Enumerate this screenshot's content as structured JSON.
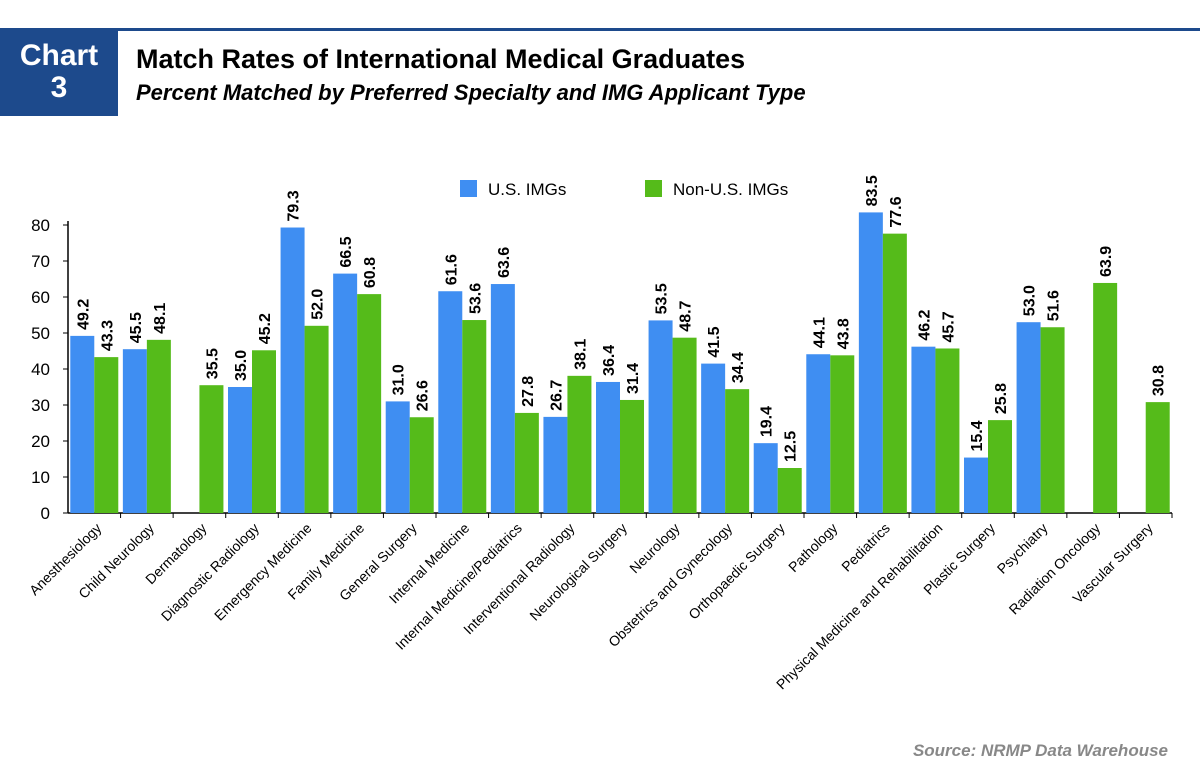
{
  "header": {
    "badge_line1": "Chart",
    "badge_line2": "3",
    "title": "Match Rates of International Medical Graduates",
    "subtitle": "Percent Matched by Preferred Specialty and IMG Applicant Type",
    "source": "Source: NRMP Data Warehouse"
  },
  "colors": {
    "us": "#3f8ef2",
    "non_us": "#55bb1a",
    "brand": "#1d4a8c"
  },
  "chart_data": {
    "type": "bar",
    "title": "Match Rates of International Medical Graduates",
    "subtitle": "Percent Matched by Preferred Specialty and IMG Applicant Type",
    "xlabel": "",
    "ylabel": "",
    "ylim": [
      0,
      80
    ],
    "yticks": [
      0,
      10,
      20,
      30,
      40,
      50,
      60,
      70,
      80
    ],
    "legend_position": "top-center",
    "categories": [
      "Anesthesiology",
      "Child Neurology",
      "Dermatology",
      "Diagnostic Radiology",
      "Emergency Medicine",
      "Family Medicine",
      "General Surgery",
      "Internal Medicine",
      "Internal Medicine/Pediatrics",
      "Interventional Radiology",
      "Neurological Surgery",
      "Neurology",
      "Obstetrics and Gynecology",
      "Orthopaedic Surgery",
      "Pathology",
      "Pediatrics",
      "Physical Medicine and Rehabilitation",
      "Plastic Surgery",
      "Psychiatry",
      "Radiation Oncology",
      "Vascular Surgery"
    ],
    "series": [
      {
        "name": "U.S. IMGs",
        "values": [
          49.2,
          45.5,
          null,
          35.0,
          79.3,
          66.5,
          31.0,
          61.6,
          63.6,
          26.7,
          36.4,
          53.5,
          41.5,
          19.4,
          44.1,
          83.5,
          46.2,
          15.4,
          53.0,
          null,
          null
        ]
      },
      {
        "name": "Non-U.S. IMGs",
        "values": [
          43.3,
          48.1,
          35.5,
          45.2,
          52.0,
          60.8,
          26.6,
          53.6,
          27.8,
          38.1,
          31.4,
          48.7,
          34.4,
          12.5,
          43.8,
          77.6,
          45.7,
          25.8,
          51.6,
          63.9,
          30.8
        ]
      }
    ]
  }
}
